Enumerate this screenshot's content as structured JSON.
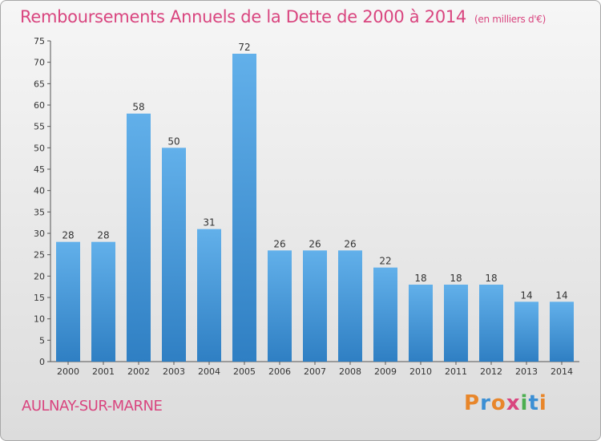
{
  "header": {
    "title": "Remboursements Annuels de la Dette de 2000 à 2014",
    "unit": "(en milliers d'€)"
  },
  "footer": {
    "commune": "AULNAY-SUR-MARNE",
    "logo_text": "Proxiti",
    "logo_colors": [
      "#e8862a",
      "#3b8fd4",
      "#e8862a",
      "#d9457f",
      "#4caf50",
      "#3b8fd4",
      "#e8862a"
    ]
  },
  "colors": {
    "bar_light": "#62b0ea",
    "bar_dark": "#2f7fc3",
    "accent": "#d9457f"
  },
  "chart_data": {
    "type": "bar",
    "title": "Remboursements Annuels de la Dette de 2000 à 2014",
    "subtitle": "(en milliers d'€)",
    "xlabel": "",
    "ylabel": "",
    "categories": [
      "2000",
      "2001",
      "2002",
      "2003",
      "2004",
      "2005",
      "2006",
      "2007",
      "2008",
      "2009",
      "2010",
      "2011",
      "2012",
      "2013",
      "2014"
    ],
    "values": [
      28,
      28,
      58,
      50,
      31,
      72,
      26,
      26,
      26,
      22,
      18,
      18,
      18,
      14,
      14
    ],
    "ylim": [
      0,
      75
    ],
    "yticks": [
      0,
      5,
      10,
      15,
      20,
      25,
      30,
      35,
      40,
      45,
      50,
      55,
      60,
      65,
      70,
      75
    ],
    "grid": false,
    "legend": "none"
  }
}
